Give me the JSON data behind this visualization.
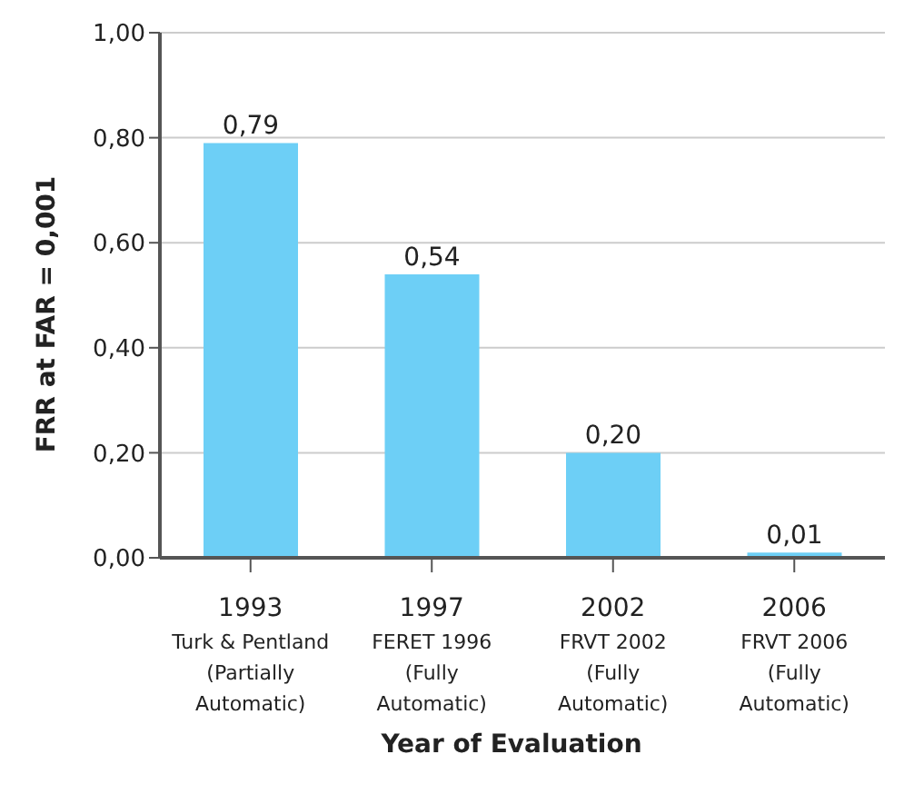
{
  "chart_data": {
    "type": "bar",
    "xlabel": "Year of Evaluation",
    "ylabel": "FRR at FAR = 0,001",
    "categories": [
      "1993\nTurk & Pentland\n(Partially\nAutomatic)",
      "1997\nFERET 1996\n(Fully\nAutomatic)",
      "2002\nFRVT 2002\n(Fully\nAutomatic)",
      "2006\nFRVT 2006\n(Fully\nAutomatic)"
    ],
    "values": [
      0.79,
      0.54,
      0.2,
      0.01
    ],
    "value_labels": [
      "0,79",
      "0,54",
      "0,20",
      "0,01"
    ],
    "color": "#6dcff6",
    "ylim": [
      0,
      1
    ],
    "yticks": [
      {
        "value": 0,
        "label": "0,00"
      },
      {
        "value": 0.2,
        "label": "0,20"
      },
      {
        "value": 0.4,
        "label": "0,40"
      },
      {
        "value": 0.6,
        "label": "0,60"
      },
      {
        "value": 0.8,
        "label": "0,80"
      },
      {
        "value": 1,
        "label": "1,00"
      }
    ],
    "grid": "y",
    "legend": false
  }
}
